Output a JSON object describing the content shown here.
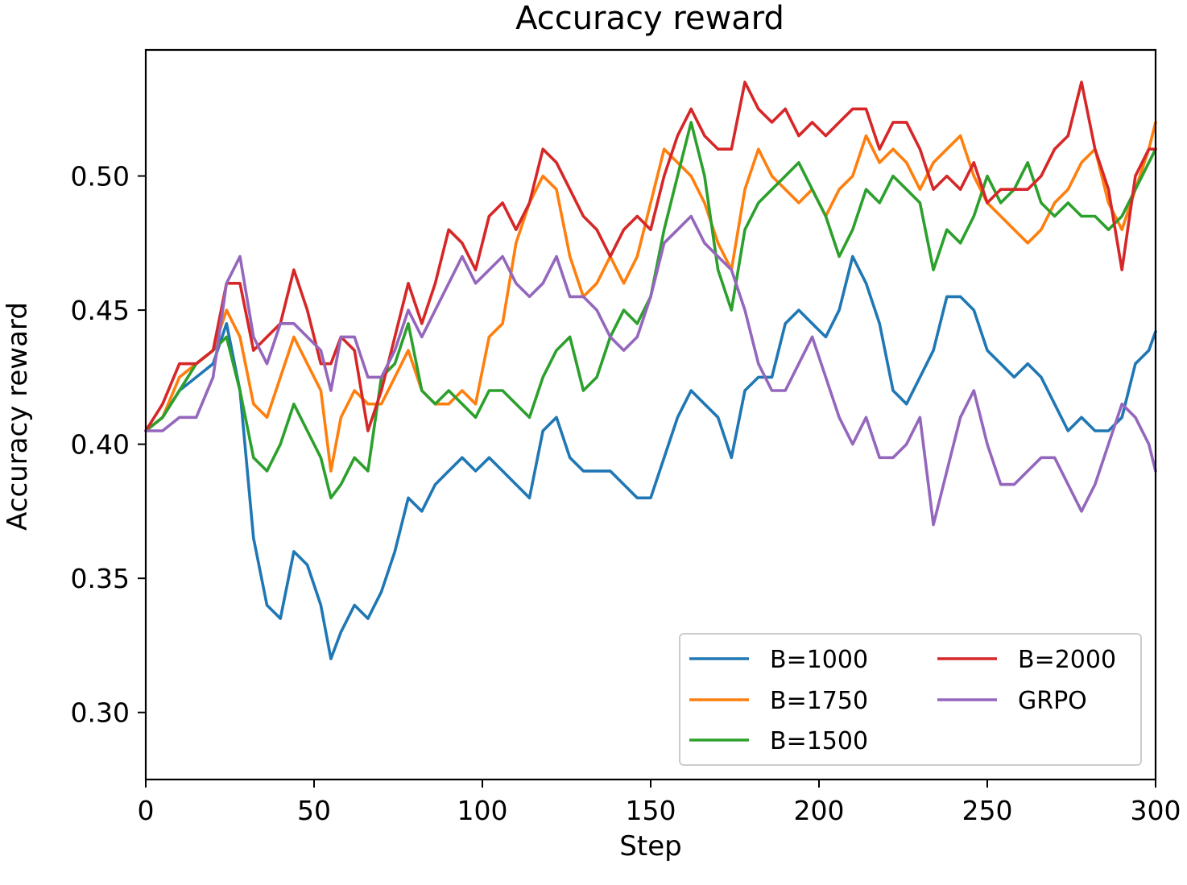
{
  "chart_data": {
    "type": "line",
    "title": "Accuracy reward",
    "xlabel": "Step",
    "ylabel": "Accuracy reward",
    "xlim": [
      0,
      300
    ],
    "ylim": [
      0.275,
      0.547
    ],
    "xticks": [
      0,
      50,
      100,
      150,
      200,
      250,
      300
    ],
    "xtick_labels": [
      "0",
      "50",
      "100",
      "150",
      "200",
      "250",
      "300"
    ],
    "yticks": [
      0.3,
      0.35,
      0.4,
      0.45,
      0.5
    ],
    "ytick_labels": [
      "0.30",
      "0.35",
      "0.40",
      "0.45",
      "0.50"
    ],
    "grid": false,
    "legend": {
      "placement": "lower-right",
      "columns": 2
    },
    "series": [
      {
        "name": "B=1000",
        "color": "#1f77b4",
        "x": [
          0,
          5,
          10,
          15,
          20,
          24,
          28,
          32,
          36,
          40,
          44,
          48,
          52,
          55,
          58,
          62,
          66,
          70,
          74,
          78,
          82,
          86,
          90,
          94,
          98,
          102,
          106,
          110,
          114,
          118,
          122,
          126,
          130,
          134,
          138,
          142,
          146,
          150,
          154,
          158,
          162,
          166,
          170,
          174,
          178,
          182,
          186,
          190,
          194,
          198,
          202,
          206,
          210,
          214,
          218,
          222,
          226,
          230,
          234,
          238,
          242,
          246,
          250,
          254,
          258,
          262,
          266,
          270,
          274,
          278,
          282,
          286,
          290,
          294,
          298,
          300
        ],
        "y": [
          0.405,
          0.41,
          0.42,
          0.425,
          0.43,
          0.445,
          0.42,
          0.365,
          0.34,
          0.335,
          0.36,
          0.355,
          0.34,
          0.32,
          0.33,
          0.34,
          0.335,
          0.345,
          0.36,
          0.38,
          0.375,
          0.385,
          0.39,
          0.395,
          0.39,
          0.395,
          0.39,
          0.385,
          0.38,
          0.405,
          0.41,
          0.395,
          0.39,
          0.39,
          0.39,
          0.385,
          0.38,
          0.38,
          0.395,
          0.41,
          0.42,
          0.415,
          0.41,
          0.395,
          0.42,
          0.425,
          0.425,
          0.445,
          0.45,
          0.445,
          0.44,
          0.45,
          0.47,
          0.46,
          0.445,
          0.42,
          0.415,
          0.425,
          0.435,
          0.455,
          0.455,
          0.45,
          0.435,
          0.43,
          0.425,
          0.43,
          0.425,
          0.415,
          0.405,
          0.41,
          0.405,
          0.405,
          0.41,
          0.43,
          0.435,
          0.442
        ]
      },
      {
        "name": "B=1750",
        "color": "#ff7f0e",
        "x": [
          0,
          5,
          10,
          15,
          20,
          24,
          28,
          32,
          36,
          40,
          44,
          48,
          52,
          55,
          58,
          62,
          66,
          70,
          74,
          78,
          82,
          86,
          90,
          94,
          98,
          102,
          106,
          110,
          114,
          118,
          122,
          126,
          130,
          134,
          138,
          142,
          146,
          150,
          154,
          158,
          162,
          166,
          170,
          174,
          178,
          182,
          186,
          190,
          194,
          198,
          202,
          206,
          210,
          214,
          218,
          222,
          226,
          230,
          234,
          238,
          242,
          246,
          250,
          254,
          258,
          262,
          266,
          270,
          274,
          278,
          282,
          286,
          290,
          294,
          298,
          300
        ],
        "y": [
          0.405,
          0.41,
          0.425,
          0.43,
          0.435,
          0.45,
          0.44,
          0.415,
          0.41,
          0.425,
          0.44,
          0.43,
          0.42,
          0.39,
          0.41,
          0.42,
          0.415,
          0.415,
          0.425,
          0.435,
          0.42,
          0.415,
          0.415,
          0.42,
          0.415,
          0.44,
          0.445,
          0.475,
          0.49,
          0.5,
          0.495,
          0.47,
          0.455,
          0.46,
          0.47,
          0.46,
          0.47,
          0.49,
          0.51,
          0.505,
          0.5,
          0.49,
          0.475,
          0.465,
          0.495,
          0.51,
          0.5,
          0.495,
          0.49,
          0.495,
          0.485,
          0.495,
          0.5,
          0.515,
          0.505,
          0.51,
          0.505,
          0.495,
          0.505,
          0.51,
          0.515,
          0.5,
          0.49,
          0.485,
          0.48,
          0.475,
          0.48,
          0.49,
          0.495,
          0.505,
          0.51,
          0.49,
          0.48,
          0.495,
          0.51,
          0.52
        ]
      },
      {
        "name": "B=1500",
        "color": "#2ca02c",
        "x": [
          0,
          5,
          10,
          15,
          20,
          24,
          28,
          32,
          36,
          40,
          44,
          48,
          52,
          55,
          58,
          62,
          66,
          70,
          74,
          78,
          82,
          86,
          90,
          94,
          98,
          102,
          106,
          110,
          114,
          118,
          122,
          126,
          130,
          134,
          138,
          142,
          146,
          150,
          154,
          158,
          162,
          166,
          170,
          174,
          178,
          182,
          186,
          190,
          194,
          198,
          202,
          206,
          210,
          214,
          218,
          222,
          226,
          230,
          234,
          238,
          242,
          246,
          250,
          254,
          258,
          262,
          266,
          270,
          274,
          278,
          282,
          286,
          290,
          294,
          298,
          300
        ],
        "y": [
          0.405,
          0.41,
          0.42,
          0.43,
          0.435,
          0.44,
          0.42,
          0.395,
          0.39,
          0.4,
          0.415,
          0.405,
          0.395,
          0.38,
          0.385,
          0.395,
          0.39,
          0.425,
          0.43,
          0.445,
          0.42,
          0.415,
          0.42,
          0.415,
          0.41,
          0.42,
          0.42,
          0.415,
          0.41,
          0.425,
          0.435,
          0.44,
          0.42,
          0.425,
          0.44,
          0.45,
          0.445,
          0.455,
          0.48,
          0.5,
          0.52,
          0.5,
          0.465,
          0.45,
          0.48,
          0.49,
          0.495,
          0.5,
          0.505,
          0.495,
          0.485,
          0.47,
          0.48,
          0.495,
          0.49,
          0.5,
          0.495,
          0.49,
          0.465,
          0.48,
          0.475,
          0.485,
          0.5,
          0.49,
          0.495,
          0.505,
          0.49,
          0.485,
          0.49,
          0.485,
          0.485,
          0.48,
          0.485,
          0.495,
          0.505,
          0.51
        ]
      },
      {
        "name": "B=2000",
        "color": "#d62728",
        "x": [
          0,
          5,
          10,
          15,
          20,
          24,
          28,
          32,
          36,
          40,
          44,
          48,
          52,
          55,
          58,
          62,
          66,
          70,
          74,
          78,
          82,
          86,
          90,
          94,
          98,
          102,
          106,
          110,
          114,
          118,
          122,
          126,
          130,
          134,
          138,
          142,
          146,
          150,
          154,
          158,
          162,
          166,
          170,
          174,
          178,
          182,
          186,
          190,
          194,
          198,
          202,
          206,
          210,
          214,
          218,
          222,
          226,
          230,
          234,
          238,
          242,
          246,
          250,
          254,
          258,
          262,
          266,
          270,
          274,
          278,
          282,
          286,
          290,
          294,
          298,
          300
        ],
        "y": [
          0.405,
          0.415,
          0.43,
          0.43,
          0.435,
          0.46,
          0.46,
          0.435,
          0.44,
          0.445,
          0.465,
          0.45,
          0.43,
          0.43,
          0.44,
          0.435,
          0.405,
          0.42,
          0.44,
          0.46,
          0.445,
          0.46,
          0.48,
          0.475,
          0.465,
          0.485,
          0.49,
          0.48,
          0.49,
          0.51,
          0.505,
          0.495,
          0.485,
          0.48,
          0.47,
          0.48,
          0.485,
          0.48,
          0.5,
          0.515,
          0.525,
          0.515,
          0.51,
          0.51,
          0.535,
          0.525,
          0.52,
          0.525,
          0.515,
          0.52,
          0.515,
          0.52,
          0.525,
          0.525,
          0.51,
          0.52,
          0.52,
          0.51,
          0.495,
          0.5,
          0.495,
          0.505,
          0.49,
          0.495,
          0.495,
          0.495,
          0.5,
          0.51,
          0.515,
          0.535,
          0.51,
          0.495,
          0.465,
          0.5,
          0.51,
          0.51
        ]
      },
      {
        "name": "GRPO",
        "color": "#9467bd",
        "x": [
          0,
          5,
          10,
          15,
          20,
          24,
          28,
          32,
          36,
          40,
          44,
          48,
          52,
          55,
          58,
          62,
          66,
          70,
          74,
          78,
          82,
          86,
          90,
          94,
          98,
          102,
          106,
          110,
          114,
          118,
          122,
          126,
          130,
          134,
          138,
          142,
          146,
          150,
          154,
          158,
          162,
          166,
          170,
          174,
          178,
          182,
          186,
          190,
          194,
          198,
          202,
          206,
          210,
          214,
          218,
          222,
          226,
          230,
          234,
          238,
          242,
          246,
          250,
          254,
          258,
          262,
          266,
          270,
          274,
          278,
          282,
          286,
          290,
          294,
          298,
          300
        ],
        "y": [
          0.405,
          0.405,
          0.41,
          0.41,
          0.425,
          0.46,
          0.47,
          0.44,
          0.43,
          0.445,
          0.445,
          0.44,
          0.435,
          0.42,
          0.44,
          0.44,
          0.425,
          0.425,
          0.435,
          0.45,
          0.44,
          0.45,
          0.46,
          0.47,
          0.46,
          0.465,
          0.47,
          0.46,
          0.455,
          0.46,
          0.47,
          0.455,
          0.455,
          0.45,
          0.44,
          0.435,
          0.44,
          0.455,
          0.475,
          0.48,
          0.485,
          0.475,
          0.47,
          0.465,
          0.45,
          0.43,
          0.42,
          0.42,
          0.43,
          0.44,
          0.425,
          0.41,
          0.4,
          0.41,
          0.395,
          0.395,
          0.4,
          0.41,
          0.37,
          0.39,
          0.41,
          0.42,
          0.4,
          0.385,
          0.385,
          0.39,
          0.395,
          0.395,
          0.385,
          0.375,
          0.385,
          0.4,
          0.415,
          0.41,
          0.4,
          0.39
        ]
      }
    ]
  }
}
